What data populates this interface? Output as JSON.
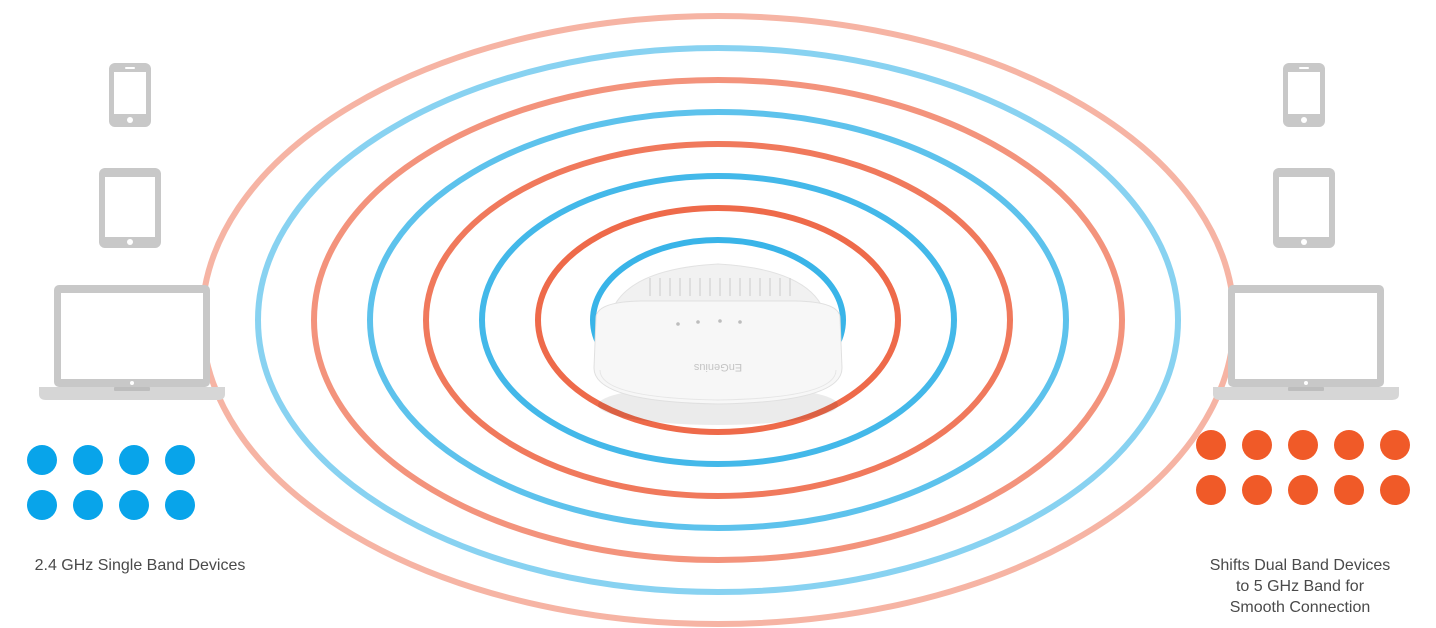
{
  "labels": {
    "left_caption": "2.4 GHz Single Band Devices",
    "right_caption": [
      "Shifts Dual Band Devices",
      "to 5 GHz Band for",
      "Smooth Connection"
    ],
    "device_logo": "EnGenius"
  },
  "colors": {
    "band_2_4": "#39b4e8",
    "band_5": "#ee6a4a",
    "dot_2_4": "#08a4ea",
    "dot_5": "#f05a28",
    "device_gray": "#c8c8c8"
  },
  "icons": {
    "left": [
      "smartphone-icon",
      "tablet-icon",
      "laptop-icon"
    ],
    "right": [
      "smartphone-icon",
      "tablet-icon",
      "laptop-icon"
    ],
    "center": "access-point-icon"
  },
  "devices": {
    "single_band_count": 8,
    "dual_band_count": 10
  }
}
